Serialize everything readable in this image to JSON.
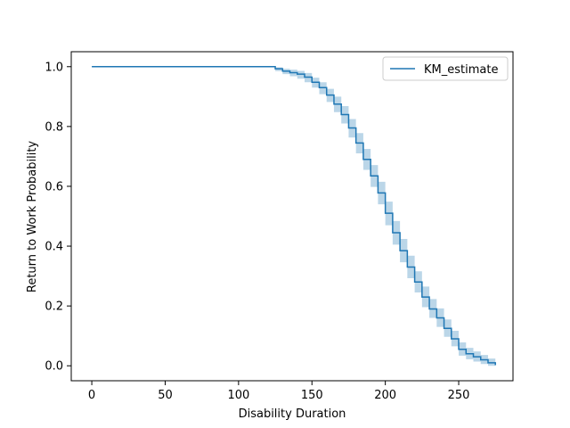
{
  "chart_data": {
    "type": "line",
    "title": "",
    "xlabel": "Disability Duration",
    "ylabel": "Return to Work Probability",
    "xlim": [
      -14,
      287
    ],
    "ylim": [
      -0.05,
      1.05
    ],
    "x_ticks": [
      0,
      50,
      100,
      150,
      200,
      250
    ],
    "y_ticks": [
      0.0,
      0.2,
      0.4,
      0.6,
      0.8,
      1.0
    ],
    "x_tick_labels": [
      "0",
      "50",
      "100",
      "150",
      "200",
      "250"
    ],
    "y_tick_labels": [
      "0.0",
      "0.2",
      "0.4",
      "0.6",
      "0.8",
      "1.0"
    ],
    "grid": false,
    "legend_position": "top-right",
    "series": [
      {
        "name": "KM_estimate",
        "color": "#1f77b4",
        "ci_color": "#1f77b4",
        "step": true,
        "x": [
          0,
          118,
          125,
          130,
          135,
          140,
          145,
          150,
          155,
          160,
          165,
          170,
          175,
          180,
          185,
          190,
          195,
          200,
          205,
          210,
          215,
          220,
          225,
          230,
          235,
          240,
          245,
          250,
          255,
          260,
          265,
          270,
          275
        ],
        "y": [
          1.0,
          1.0,
          0.993,
          0.985,
          0.98,
          0.975,
          0.965,
          0.948,
          0.93,
          0.905,
          0.875,
          0.84,
          0.795,
          0.745,
          0.69,
          0.635,
          0.578,
          0.51,
          0.445,
          0.385,
          0.33,
          0.28,
          0.23,
          0.19,
          0.16,
          0.125,
          0.09,
          0.055,
          0.04,
          0.03,
          0.02,
          0.01,
          0.002
        ],
        "ci_lower": [
          1.0,
          1.0,
          0.985,
          0.975,
          0.968,
          0.96,
          0.948,
          0.93,
          0.908,
          0.882,
          0.848,
          0.81,
          0.763,
          0.71,
          0.655,
          0.598,
          0.54,
          0.47,
          0.405,
          0.346,
          0.293,
          0.245,
          0.196,
          0.16,
          0.13,
          0.097,
          0.065,
          0.034,
          0.022,
          0.014,
          0.006,
          0.0,
          0.0
        ],
        "ci_upper": [
          1.0,
          1.0,
          0.998,
          0.993,
          0.99,
          0.986,
          0.979,
          0.963,
          0.948,
          0.926,
          0.9,
          0.868,
          0.825,
          0.778,
          0.725,
          0.671,
          0.615,
          0.549,
          0.484,
          0.424,
          0.368,
          0.316,
          0.265,
          0.223,
          0.192,
          0.155,
          0.117,
          0.078,
          0.06,
          0.048,
          0.036,
          0.024,
          0.01
        ]
      }
    ]
  }
}
